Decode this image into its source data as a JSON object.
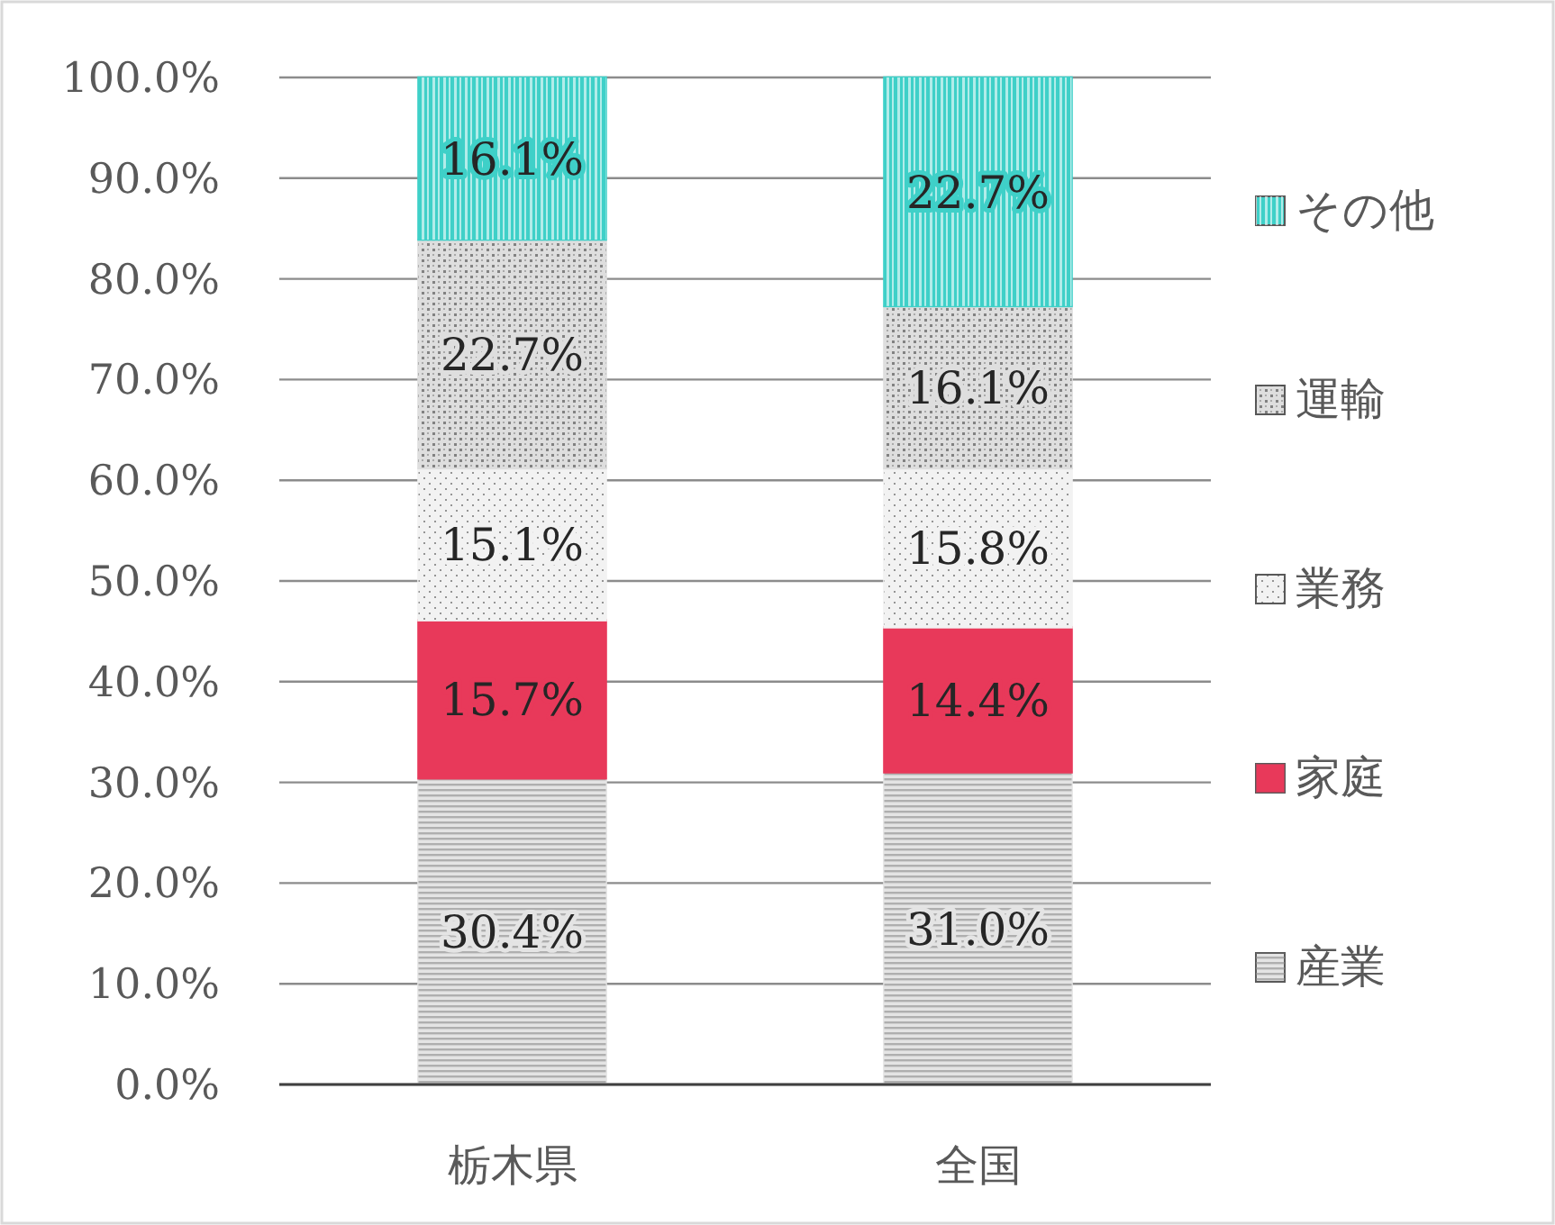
{
  "chart_data": {
    "type": "bar",
    "stacked": true,
    "categories": [
      "栃木県",
      "全国"
    ],
    "series": [
      {
        "name": "産業",
        "color": "#e4e4e4",
        "values": [
          30.4,
          31.0
        ],
        "value_labels": [
          "30.4%",
          "31.0%"
        ]
      },
      {
        "name": "家庭",
        "color": "#e8395a",
        "values": [
          15.7,
          14.4
        ],
        "value_labels": [
          "15.7%",
          "14.4%"
        ]
      },
      {
        "name": "業務",
        "color": "#f2f2f2",
        "values": [
          15.1,
          15.8
        ],
        "value_labels": [
          "15.1%",
          "15.8%"
        ]
      },
      {
        "name": "運輸",
        "color": "#dedede",
        "values": [
          22.7,
          16.1
        ],
        "value_labels": [
          "22.7%",
          "16.1%"
        ]
      },
      {
        "name": "その他",
        "color": "#3fd0c8",
        "values": [
          16.1,
          22.7
        ],
        "value_labels": [
          "16.1%",
          "22.7%"
        ]
      }
    ],
    "ylim": [
      0,
      100
    ],
    "yticks": [
      {
        "value": 0,
        "label": "0.0%"
      },
      {
        "value": 10,
        "label": "10.0%"
      },
      {
        "value": 20,
        "label": "20.0%"
      },
      {
        "value": 30,
        "label": "30.0%"
      },
      {
        "value": 40,
        "label": "40.0%"
      },
      {
        "value": 50,
        "label": "50.0%"
      },
      {
        "value": 60,
        "label": "60.0%"
      },
      {
        "value": 70,
        "label": "70.0%"
      },
      {
        "value": 80,
        "label": "80.0%"
      },
      {
        "value": 90,
        "label": "90.0%"
      },
      {
        "value": 100,
        "label": "100.0%"
      }
    ],
    "grid": "y",
    "legend": "right"
  }
}
